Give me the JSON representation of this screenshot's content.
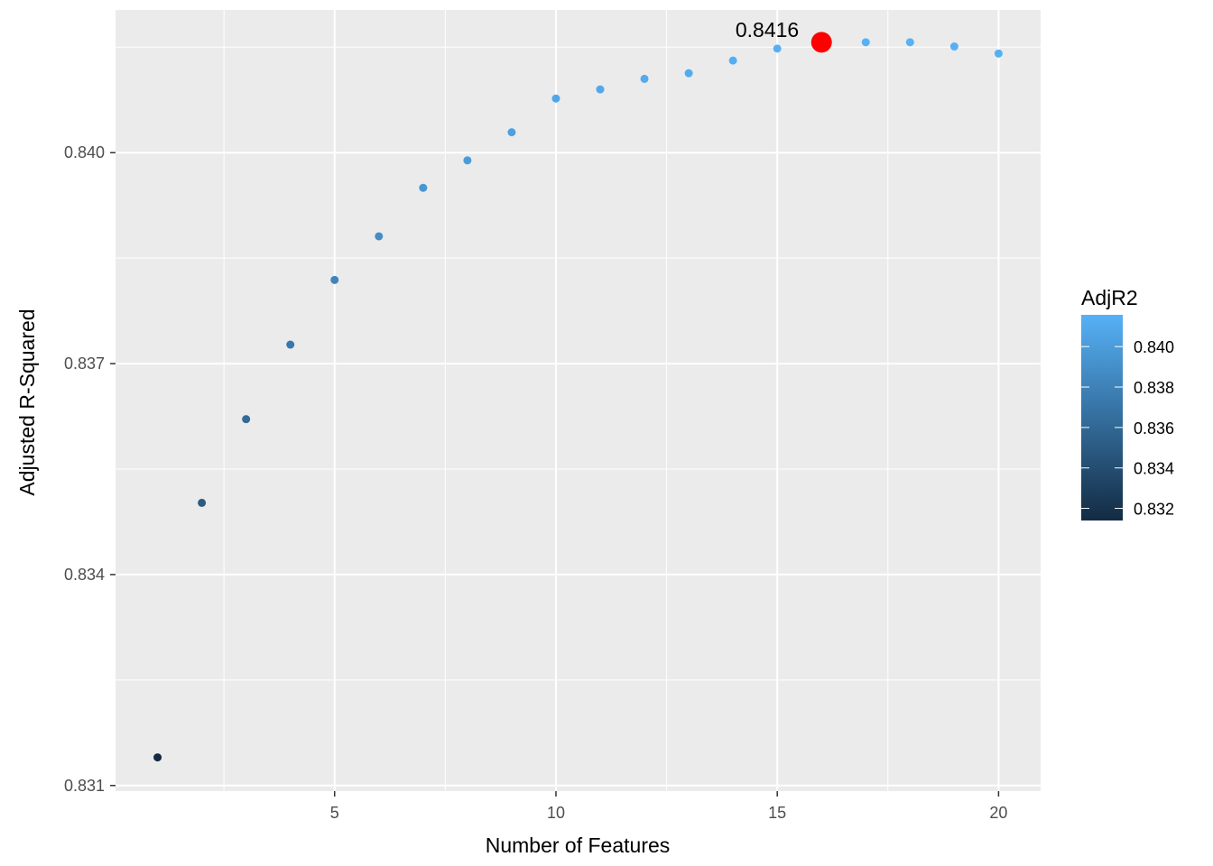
{
  "chart_data": {
    "type": "scatter",
    "xlabel": "Number of Features",
    "ylabel": "Adjusted R-Squared",
    "xlim": [
      0.05,
      20.95
    ],
    "ylim": [
      0.83092,
      0.84203
    ],
    "x_ticks": [
      5,
      10,
      15,
      20
    ],
    "x_minor_ticks": [
      2.5,
      7.5,
      12.5,
      17.5
    ],
    "y_ticks": [
      0.831,
      0.834,
      0.837,
      0.84
    ],
    "y_tick_labels": [
      "0.831",
      "0.834",
      "0.837",
      "0.840"
    ],
    "y_minor_ticks": [
      0.8325,
      0.8355,
      0.8385,
      0.8415
    ],
    "grid": true,
    "x": [
      1,
      2,
      3,
      4,
      5,
      6,
      7,
      8,
      9,
      10,
      11,
      12,
      13,
      14,
      15,
      16,
      17,
      18,
      19,
      20
    ],
    "y": [
      0.8314,
      0.83502,
      0.83621,
      0.83727,
      0.83819,
      0.83881,
      0.8395,
      0.83989,
      0.84029,
      0.84077,
      0.8409,
      0.84105,
      0.84113,
      0.84131,
      0.84148,
      0.84157,
      0.84157,
      0.84157,
      0.84151,
      0.84141
    ],
    "highlight": {
      "x": 16,
      "y": 0.84157,
      "label": "0.8416",
      "color": "#ff0000"
    },
    "legend": {
      "title": "AdjR2",
      "position": "right",
      "ticks": [
        0.84,
        0.838,
        0.836,
        0.834,
        0.832
      ],
      "tick_labels": [
        "0.840",
        "0.838",
        "0.836",
        "0.834",
        "0.832"
      ],
      "range": [
        0.8314,
        0.84157
      ],
      "color_low": "#132b43",
      "color_high": "#56b1f7"
    },
    "colors": {
      "panel": "#ebebeb",
      "grid": "#ffffff"
    }
  }
}
